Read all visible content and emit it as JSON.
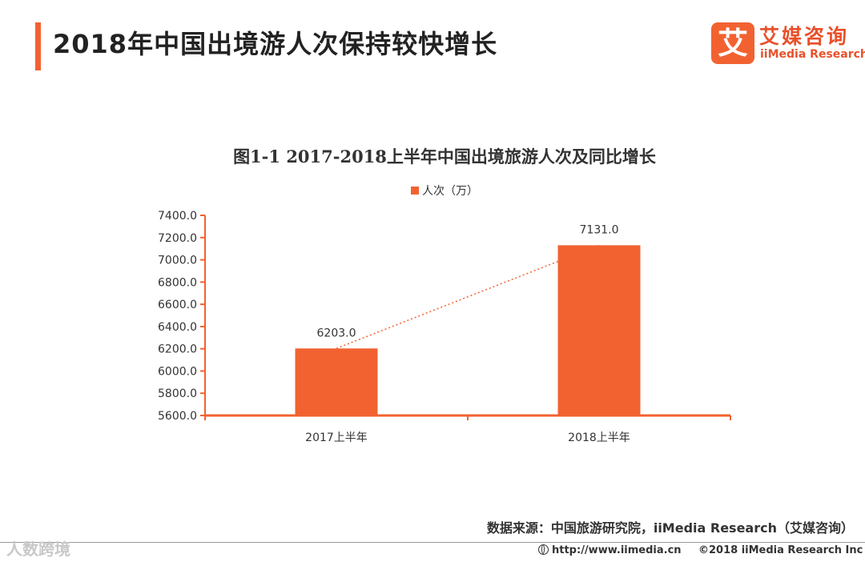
{
  "header": {
    "title": "2018年中国出境游人次保持较快增长",
    "logo_mark": "艾",
    "logo_cn": "艾媒咨询",
    "logo_en": "iiMedia Research"
  },
  "chart_data": {
    "type": "bar",
    "title": "图1-1 2017-2018上半年中国出境旅游人次及同比增长",
    "categories": [
      "2017上半年",
      "2018上半年"
    ],
    "series": [
      {
        "name": "人次（万）",
        "values": [
          6203.0,
          7131.0
        ],
        "color": "#f26231"
      }
    ],
    "value_labels": [
      "6203.0",
      "7131.0"
    ],
    "ylim": [
      5600,
      7400
    ],
    "yticks": [
      "5600.0",
      "5800.0",
      "6000.0",
      "6200.0",
      "6400.0",
      "6600.0",
      "6800.0",
      "7000.0",
      "7200.0",
      "7400.0"
    ],
    "trend_line": true,
    "legend_position": "top-center",
    "grid": false,
    "axis_color": "#f26231"
  },
  "footer": {
    "source": "数据来源：中国旅游研究院，iiMedia Research（艾媒咨询）",
    "watermark": "人数跨境",
    "url": "http://www.iimedia.cn",
    "copyright": "©2018  iiMedia Research  Inc"
  }
}
